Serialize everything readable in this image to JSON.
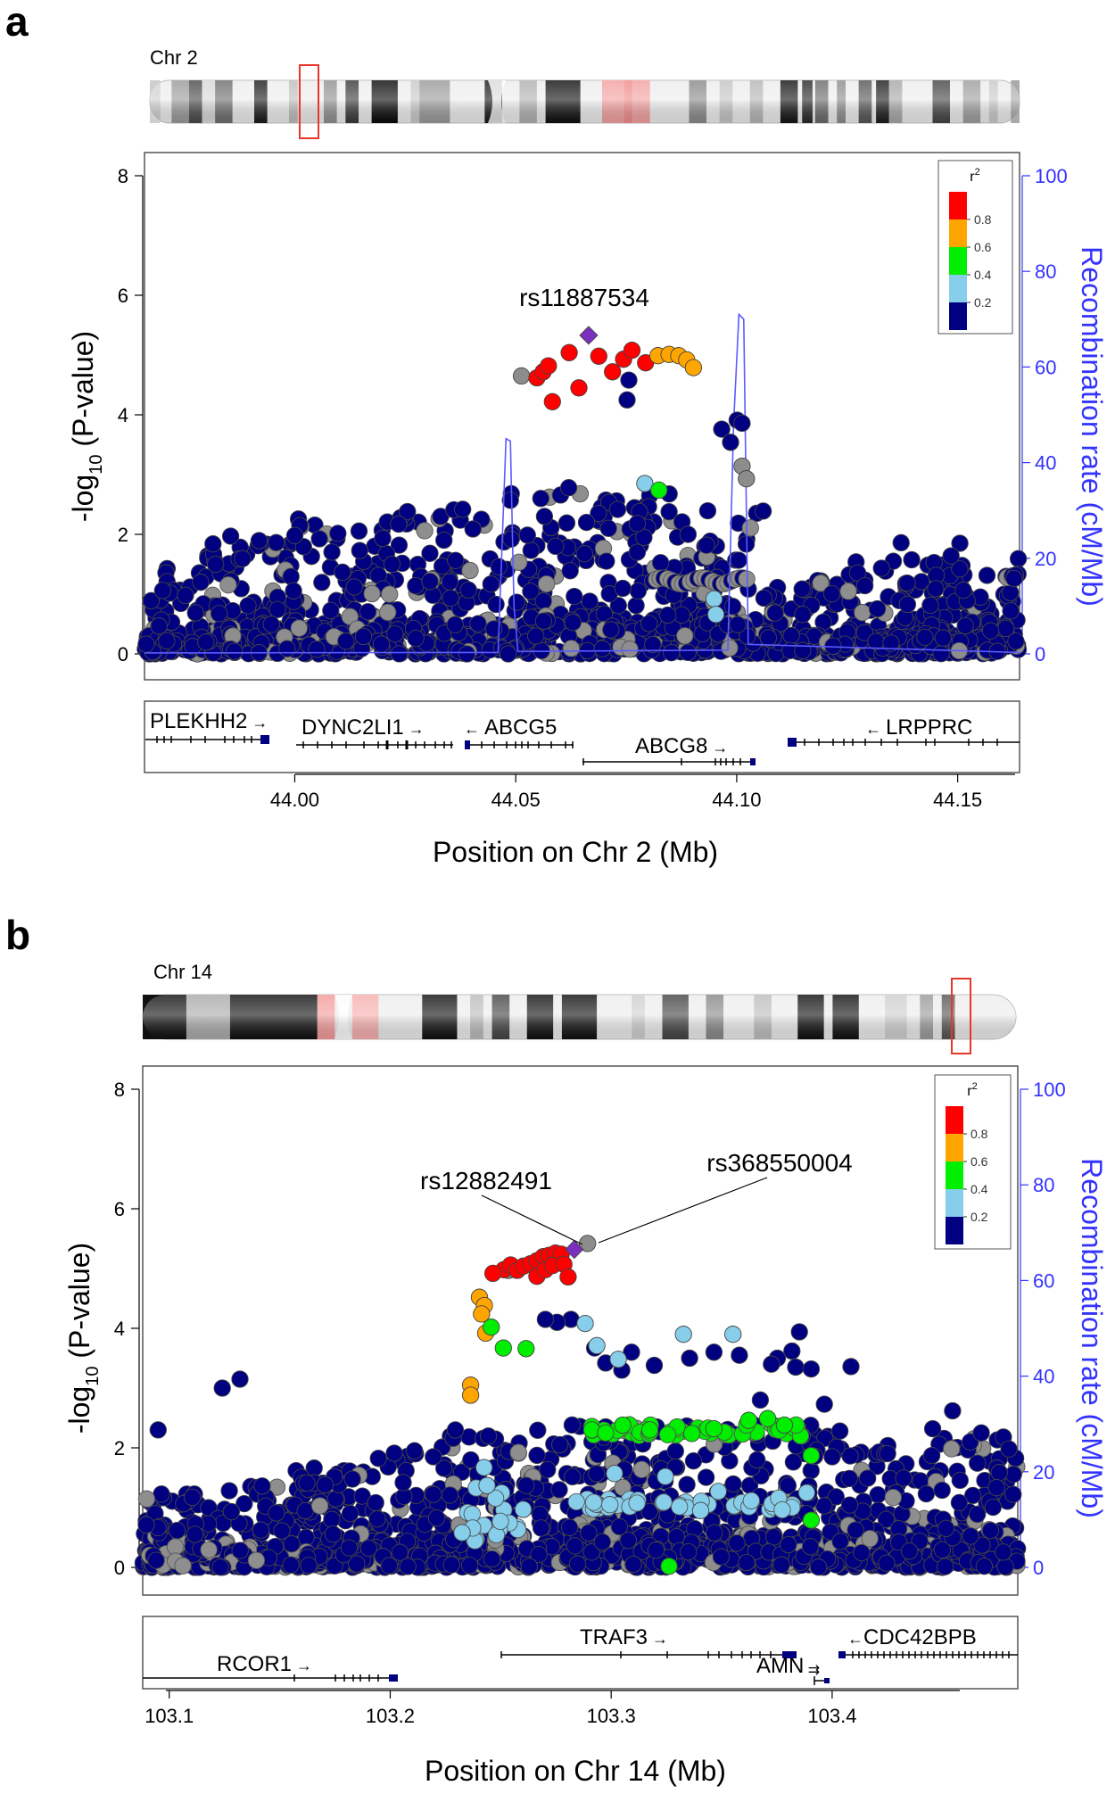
{
  "chart_data": [
    {
      "type": "scatter",
      "panel_label": "a",
      "chromosome_label": "Chr 2",
      "xlabel": "Position on Chr 2 (Mb)",
      "ylabel": "-log",
      "ylabel_sub": "10",
      "ylabel_tail": " (P-value)",
      "y2label": "Recombination rate (cM/Mb)",
      "xlim": [
        43.966,
        44.164
      ],
      "ylim": [
        0,
        8
      ],
      "y2lim": [
        0,
        100
      ],
      "x_ticks": [
        "44.00",
        "44.05",
        "44.10",
        "44.15"
      ],
      "x_tick_values": [
        44.0,
        44.05,
        44.1,
        44.15
      ],
      "y_ticks": [
        "0",
        "2",
        "4",
        "6",
        "8"
      ],
      "y2_ticks": [
        "0",
        "20",
        "40",
        "60",
        "80",
        "100"
      ],
      "legend": {
        "title": "r",
        "title_sup": "2",
        "placement": "top-right",
        "labels": [
          "0.8",
          "0.6",
          "0.4",
          "0.2"
        ],
        "colors": [
          "#ff0000",
          "#ffa500",
          "#00ee00",
          "#87ceeb",
          "#000080"
        ]
      },
      "lead_snp": {
        "label": "rs11887534",
        "x": 44.0665,
        "y": 5.33,
        "color": "#7b2fbe"
      },
      "annotations": [],
      "colored_points": [
        {
          "x": 44.0513,
          "y": 4.65,
          "r2": "gray"
        },
        {
          "x": 44.0548,
          "y": 4.62,
          "r2": "0.8"
        },
        {
          "x": 44.0562,
          "y": 4.72,
          "r2": "0.8"
        },
        {
          "x": 44.0574,
          "y": 4.82,
          "r2": "0.8"
        },
        {
          "x": 44.0583,
          "y": 4.22,
          "r2": "0.8"
        },
        {
          "x": 44.0621,
          "y": 5.04,
          "r2": "0.8"
        },
        {
          "x": 44.0643,
          "y": 4.45,
          "r2": "0.8"
        },
        {
          "x": 44.0688,
          "y": 4.98,
          "r2": "0.8"
        },
        {
          "x": 44.0719,
          "y": 4.72,
          "r2": "0.8"
        },
        {
          "x": 44.0744,
          "y": 4.93,
          "r2": "0.8"
        },
        {
          "x": 44.0763,
          "y": 5.08,
          "r2": "0.8"
        },
        {
          "x": 44.0794,
          "y": 4.87,
          "r2": "0.8"
        },
        {
          "x": 44.0822,
          "y": 4.99,
          "r2": "0.6"
        },
        {
          "x": 44.0847,
          "y": 5.01,
          "r2": "0.6"
        },
        {
          "x": 44.0869,
          "y": 4.99,
          "r2": "0.6"
        },
        {
          "x": 44.0887,
          "y": 4.92,
          "r2": "0.6"
        },
        {
          "x": 44.0902,
          "y": 4.79,
          "r2": "0.6"
        },
        {
          "x": 44.0752,
          "y": 4.25,
          "r2": "0.2"
        },
        {
          "x": 44.0756,
          "y": 4.58,
          "r2": "0.2"
        },
        {
          "x": 44.0966,
          "y": 3.76,
          "r2": "0.2"
        },
        {
          "x": 44.1001,
          "y": 3.91,
          "r2": "0.2"
        },
        {
          "x": 44.1012,
          "y": 3.86,
          "r2": "0.2"
        },
        {
          "x": 44.0986,
          "y": 3.54,
          "r2": "0.2"
        },
        {
          "x": 44.0792,
          "y": 2.85,
          "r2": "0.4b"
        },
        {
          "x": 44.0824,
          "y": 2.74,
          "r2": "0.4"
        },
        {
          "x": 44.1012,
          "y": 3.14,
          "r2": "gray"
        },
        {
          "x": 44.1022,
          "y": 2.93,
          "r2": "gray"
        },
        {
          "x": 44.0949,
          "y": 0.92,
          "r2": "0.4b"
        },
        {
          "x": 44.0953,
          "y": 0.66,
          "r2": "0.4b"
        }
      ],
      "recombination_rate": [
        [
          43.966,
          0.2
        ],
        [
          44.046,
          0.3
        ],
        [
          44.0478,
          45
        ],
        [
          44.0488,
          44.5
        ],
        [
          44.0496,
          10
        ],
        [
          44.0505,
          0.5
        ],
        [
          44.098,
          0.8
        ],
        [
          44.0993,
          48
        ],
        [
          44.1005,
          71
        ],
        [
          44.1016,
          70
        ],
        [
          44.1026,
          2
        ],
        [
          44.164,
          0.3
        ]
      ],
      "genes": [
        {
          "name": "PLEKHH2",
          "strand": "+",
          "start": 43.967,
          "end": 43.995
        },
        {
          "name": "DYNC2LI1",
          "strand": "+",
          "start": 44.0,
          "end": 44.032
        },
        {
          "name": "ABCG5",
          "strand": "-",
          "start": 44.039,
          "end": 44.062
        },
        {
          "name": "ABCG8",
          "strand": "+",
          "start": 44.066,
          "end": 44.105
        },
        {
          "name": "LRPPRC",
          "strand": "-",
          "start": 44.113,
          "end": 44.223
        }
      ],
      "ideogram_highlight_fraction": [
        0.178,
        0.2
      ]
    },
    {
      "type": "scatter",
      "panel_label": "b",
      "chromosome_label": "Chr 14",
      "xlabel": "Position on Chr 14 (Mb)",
      "ylabel": "-log",
      "ylabel_sub": "10",
      "ylabel_tail": " (P-value)",
      "y2label": "Recombination rate (cM/Mb)",
      "xlim": [
        103.088,
        103.484
      ],
      "ylim": [
        0,
        8
      ],
      "y2lim": [
        0,
        100
      ],
      "x_ticks": [
        "103.1",
        "103.2",
        "103.3",
        "103.4"
      ],
      "x_tick_values": [
        103.1,
        103.2,
        103.3,
        103.4
      ],
      "y_ticks": [
        "0",
        "2",
        "4",
        "6",
        "8"
      ],
      "y2_ticks": [
        "0",
        "20",
        "40",
        "60",
        "80",
        "100"
      ],
      "legend": {
        "title": "r",
        "title_sup": "2",
        "placement": "top-right",
        "labels": [
          "0.8",
          "0.6",
          "0.4",
          "0.2"
        ],
        "colors": [
          "#ff0000",
          "#ffa500",
          "#00ee00",
          "#87ceeb",
          "#000080"
        ]
      },
      "lead_snp": {
        "label": "rs12882491",
        "x": 103.2833,
        "y": 5.32,
        "color": "#7b2fbe"
      },
      "annotations": [
        {
          "label": "rs12882491",
          "x": 103.2833,
          "y": 5.32
        },
        {
          "label": "rs368550004",
          "x": 103.2893,
          "y": 5.42
        }
      ],
      "colored_points": [
        {
          "x": 103.2893,
          "y": 5.42,
          "r2": "gray"
        },
        {
          "x": 103.2535,
          "y": 4.97,
          "r2": "gray"
        },
        {
          "x": 103.2514,
          "y": 4.98,
          "r2": "0.8"
        },
        {
          "x": 103.2545,
          "y": 5.06,
          "r2": "0.8"
        },
        {
          "x": 103.2575,
          "y": 4.97,
          "r2": "0.8"
        },
        {
          "x": 103.2603,
          "y": 5.04,
          "r2": "0.8"
        },
        {
          "x": 103.2635,
          "y": 5.08,
          "r2": "0.8"
        },
        {
          "x": 103.2664,
          "y": 5.13,
          "r2": "0.8"
        },
        {
          "x": 103.2693,
          "y": 5.2,
          "r2": "0.8"
        },
        {
          "x": 103.2718,
          "y": 5.22,
          "r2": "0.8"
        },
        {
          "x": 103.2748,
          "y": 5.26,
          "r2": "0.8"
        },
        {
          "x": 103.2774,
          "y": 5.24,
          "r2": "0.8"
        },
        {
          "x": 103.2664,
          "y": 4.87,
          "r2": "0.8"
        },
        {
          "x": 103.2702,
          "y": 4.98,
          "r2": "0.8"
        },
        {
          "x": 103.2734,
          "y": 5.05,
          "r2": "0.8"
        },
        {
          "x": 103.2786,
          "y": 5.07,
          "r2": "0.8"
        },
        {
          "x": 103.2805,
          "y": 4.86,
          "r2": "0.8"
        },
        {
          "x": 103.2465,
          "y": 4.92,
          "r2": "0.8"
        },
        {
          "x": 103.2404,
          "y": 4.52,
          "r2": "0.6"
        },
        {
          "x": 103.2426,
          "y": 4.38,
          "r2": "0.6"
        },
        {
          "x": 103.2413,
          "y": 4.24,
          "r2": "0.6"
        },
        {
          "x": 103.2432,
          "y": 3.92,
          "r2": "0.6"
        },
        {
          "x": 103.2364,
          "y": 3.05,
          "r2": "0.6"
        },
        {
          "x": 103.2364,
          "y": 2.88,
          "r2": "0.6"
        },
        {
          "x": 103.2457,
          "y": 4.02,
          "r2": "0.4"
        },
        {
          "x": 103.2512,
          "y": 3.67,
          "r2": "0.4"
        },
        {
          "x": 103.2615,
          "y": 3.66,
          "r2": "0.4"
        },
        {
          "x": 103.2912,
          "y": 2.3,
          "r2": "0.4"
        },
        {
          "x": 103.2975,
          "y": 2.25,
          "r2": "0.4"
        },
        {
          "x": 103.3052,
          "y": 2.38,
          "r2": "0.4"
        },
        {
          "x": 103.3175,
          "y": 2.3,
          "r2": "0.4"
        },
        {
          "x": 103.3365,
          "y": 2.24,
          "r2": "0.4"
        },
        {
          "x": 103.3465,
          "y": 2.32,
          "r2": "0.4"
        },
        {
          "x": 103.3622,
          "y": 2.46,
          "r2": "0.4"
        },
        {
          "x": 103.3708,
          "y": 2.49,
          "r2": "0.4"
        },
        {
          "x": 103.3784,
          "y": 2.38,
          "r2": "0.4"
        },
        {
          "x": 103.3905,
          "y": 1.87,
          "r2": "0.4"
        },
        {
          "x": 103.3905,
          "y": 0.79,
          "r2": "0.4"
        },
        {
          "x": 103.3262,
          "y": 0.02,
          "r2": "0.4"
        },
        {
          "x": 103.2882,
          "y": 4.08,
          "r2": "0.4b"
        },
        {
          "x": 103.3327,
          "y": 3.9,
          "r2": "0.4b"
        },
        {
          "x": 103.3551,
          "y": 3.9,
          "r2": "0.4b"
        },
        {
          "x": 103.2935,
          "y": 3.71,
          "r2": "0.4b"
        },
        {
          "x": 103.3032,
          "y": 3.48,
          "r2": "0.4b"
        },
        {
          "x": 103.2425,
          "y": 1.67,
          "r2": "0.4b"
        },
        {
          "x": 103.2438,
          "y": 1.37,
          "r2": "0.4b"
        },
        {
          "x": 103.3015,
          "y": 1.57,
          "r2": "0.4b"
        },
        {
          "x": 103.3245,
          "y": 1.52,
          "r2": "0.4b"
        },
        {
          "x": 103.3485,
          "y": 1.27,
          "r2": "0.4b"
        },
        {
          "x": 103.3405,
          "y": 0.95,
          "r2": "0.4b"
        },
        {
          "x": 103.2602,
          "y": 0.97,
          "r2": "0.4b"
        },
        {
          "x": 103.2325,
          "y": 0.58,
          "r2": "0.4b"
        },
        {
          "x": 103.3885,
          "y": 1.25,
          "r2": "0.4b"
        }
      ],
      "recombination_rate": [],
      "genes": [
        {
          "name": "RCOR1",
          "strand": "+",
          "start": 103.059,
          "end": 103.2
        },
        {
          "name": "TRAF3",
          "strand": "+",
          "start": 103.243,
          "end": 103.377
        },
        {
          "name": "AMN",
          "strand": "+",
          "start": 103.389,
          "end": 103.396
        },
        {
          "name": "CDC42BPB",
          "strand": "-",
          "start": 103.4,
          "end": 103.61
        }
      ],
      "ideogram_highlight_fraction": [
        0.92,
        0.943
      ]
    }
  ]
}
